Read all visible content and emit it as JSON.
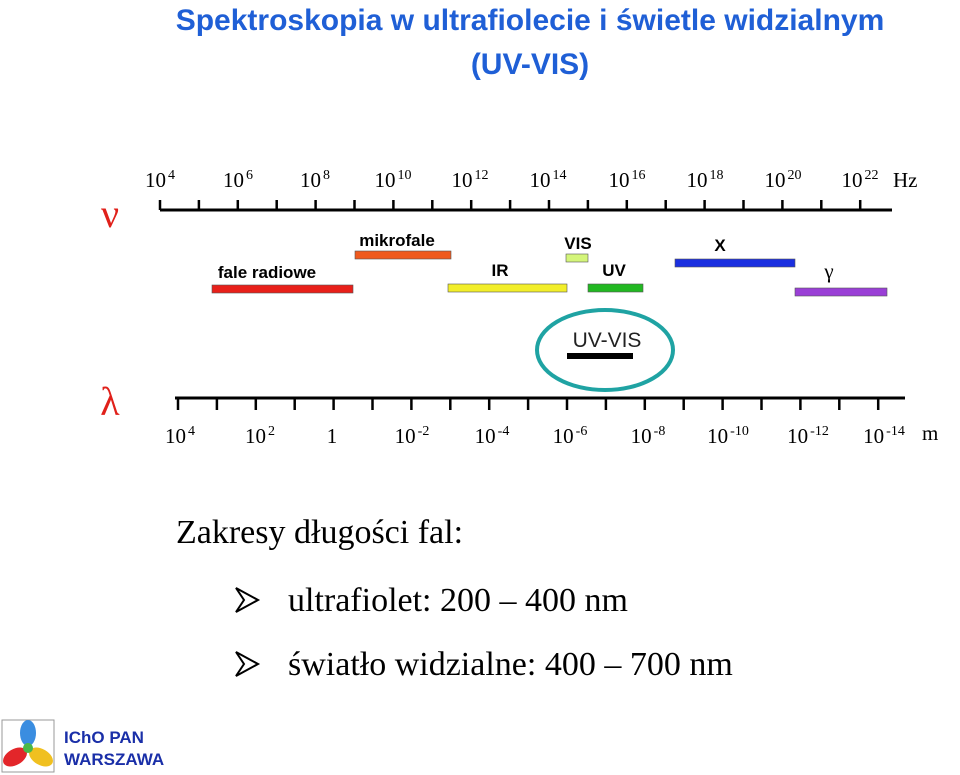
{
  "title": [
    "Spektroskopia w ultrafiolecie i świetle widzialnym",
    "(UV-VIS)"
  ],
  "frequency_axis": {
    "symbol": "ν",
    "unit": "Hz",
    "labels": [
      {
        "base": "10",
        "exp": "4"
      },
      {
        "base": "10",
        "exp": "6"
      },
      {
        "base": "10",
        "exp": "8"
      },
      {
        "base": "10",
        "exp": "10"
      },
      {
        "base": "10",
        "exp": "12"
      },
      {
        "base": "10",
        "exp": "14"
      },
      {
        "base": "10",
        "exp": "16"
      },
      {
        "base": "10",
        "exp": "18"
      },
      {
        "base": "10",
        "exp": "20"
      },
      {
        "base": "10",
        "exp": "22"
      }
    ]
  },
  "bands": [
    {
      "label": "fale radiowe",
      "color": "#e8201a"
    },
    {
      "label": "mikrofale",
      "color": "#ef5a1e"
    },
    {
      "label": "IR",
      "color": "#f2ee2a"
    },
    {
      "label": "VIS",
      "color": "#d4f57a"
    },
    {
      "label": "UV",
      "color": "#22b822"
    },
    {
      "label": "X",
      "color": "#1a2fe0"
    },
    {
      "label": "γ",
      "color": "#9a3fd6"
    }
  ],
  "uv_vis_marker": {
    "label": "UV-VIS",
    "ring_color": "#1fa3a3"
  },
  "wavelength_axis": {
    "symbol": "λ",
    "unit": "m",
    "labels": [
      {
        "base": "10",
        "exp": "4"
      },
      {
        "base": "10",
        "exp": "2"
      },
      {
        "base": "1"
      },
      {
        "base": "10",
        "exp": "-2"
      },
      {
        "base": "10",
        "exp": "-4"
      },
      {
        "base": "10",
        "exp": "-6"
      },
      {
        "base": "10",
        "exp": "-8"
      },
      {
        "base": "10",
        "exp": "-10"
      },
      {
        "base": "10",
        "exp": "-12"
      },
      {
        "base": "10",
        "exp": "-14"
      }
    ]
  },
  "ranges": {
    "heading": "Zakresy długości fal:",
    "items": [
      "ultrafiolet: 200 – 400 nm",
      "światło widzialne: 400 – 700 nm"
    ]
  },
  "logo": {
    "lines": [
      "IChO PAN",
      "WARSZAWA"
    ]
  }
}
